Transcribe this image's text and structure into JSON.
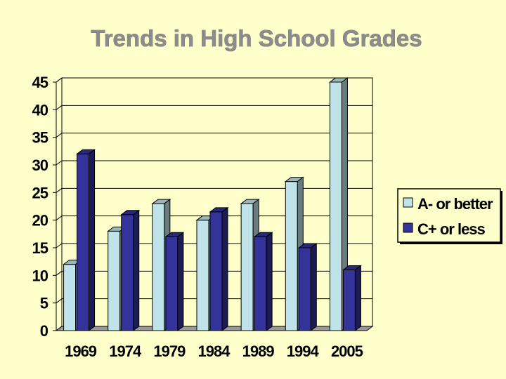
{
  "slide": {
    "background": "#ffffcc"
  },
  "chart_data": {
    "type": "bar",
    "title": "Trends in High School Grades",
    "xlabel": "",
    "ylabel": "",
    "categories": [
      "1969",
      "1974",
      "1979",
      "1984",
      "1989",
      "1994",
      "2005"
    ],
    "series": [
      {
        "name": "A- or better",
        "values": [
          12,
          18,
          23,
          20,
          23,
          27,
          45
        ],
        "color": "#bfe3e8"
      },
      {
        "name": "C+ or less",
        "values": [
          32,
          21,
          17,
          21.5,
          17,
          15,
          11
        ],
        "color": "#333399"
      }
    ],
    "ylim": [
      0,
      45
    ],
    "yticks": [
      "0",
      "5",
      "10",
      "15",
      "20",
      "25",
      "30",
      "35",
      "40",
      "45"
    ],
    "grid": true,
    "bar_style": "3d",
    "legend_position": "right"
  }
}
